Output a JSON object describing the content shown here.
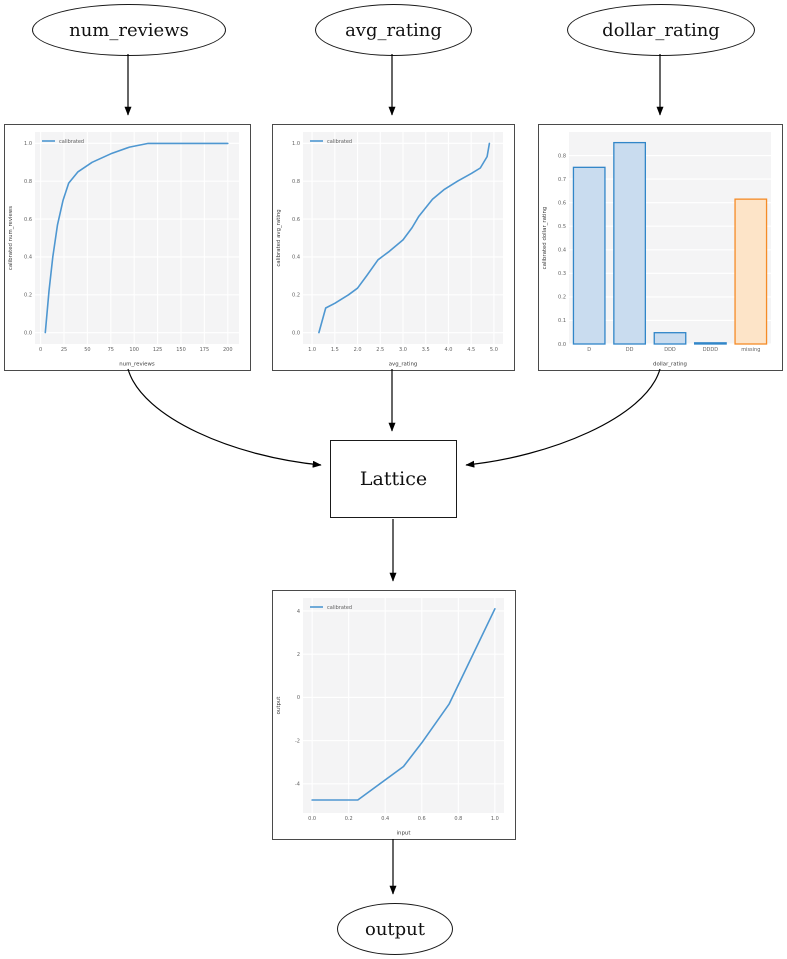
{
  "nodes": {
    "num_reviews": "num_reviews",
    "avg_rating": "avg_rating",
    "dollar_rating": "dollar_rating",
    "lattice": "Lattice",
    "output": "output"
  },
  "colors": {
    "line_blue": "#4e97d1",
    "bar_blue_fill": "#c9dcef",
    "bar_blue_edge": "#3186c8",
    "bar_orange_fill": "#fde4c8",
    "bar_orange_edge": "#f58b27",
    "axes_bg": "#f4f4f5",
    "grid": "#ffffff",
    "tick_text": "#606060",
    "label_text": "#3a3a3a",
    "edge_black": "#000000"
  },
  "chart_data": [
    {
      "id": "num_reviews_calibration",
      "type": "line",
      "legend": "calibrated",
      "xlabel": "num_reviews",
      "ylabel": "calibrated num_reviews",
      "xlim": [
        -6,
        212
      ],
      "ylim": [
        -0.06,
        1.06
      ],
      "xticks": [
        0,
        25,
        50,
        75,
        100,
        125,
        150,
        175,
        200
      ],
      "xtick_labels": [
        "0",
        "25",
        "50",
        "75",
        "100",
        "125",
        "150",
        "175",
        "200"
      ],
      "yticks": [
        0.0,
        0.2,
        0.4,
        0.6,
        0.8,
        1.0
      ],
      "ytick_labels": [
        "0.0",
        "0.2",
        "0.4",
        "0.6",
        "0.8",
        "1.0"
      ],
      "points": [
        [
          5,
          0.0
        ],
        [
          9,
          0.22
        ],
        [
          13,
          0.4
        ],
        [
          18,
          0.57
        ],
        [
          24,
          0.7
        ],
        [
          30,
          0.79
        ],
        [
          40,
          0.85
        ],
        [
          55,
          0.9
        ],
        [
          75,
          0.945
        ],
        [
          95,
          0.98
        ],
        [
          115,
          1.0
        ],
        [
          200,
          1.0
        ]
      ]
    },
    {
      "id": "avg_rating_calibration",
      "type": "line",
      "legend": "calibrated",
      "xlabel": "avg_rating",
      "ylabel": "calibrated avg_rating",
      "xlim": [
        0.8,
        5.2
      ],
      "ylim": [
        -0.06,
        1.06
      ],
      "xticks": [
        1.0,
        1.5,
        2.0,
        2.5,
        3.0,
        3.5,
        4.0,
        4.5,
        5.0
      ],
      "xtick_labels": [
        "1.0",
        "1.5",
        "2.0",
        "2.5",
        "3.0",
        "3.5",
        "4.0",
        "4.5",
        "5.0"
      ],
      "yticks": [
        0.0,
        0.2,
        0.4,
        0.6,
        0.8,
        1.0
      ],
      "ytick_labels": [
        "0.0",
        "0.2",
        "0.4",
        "0.6",
        "0.8",
        "1.0"
      ],
      "points": [
        [
          1.15,
          0.0
        ],
        [
          1.3,
          0.13
        ],
        [
          1.5,
          0.155
        ],
        [
          1.8,
          0.2
        ],
        [
          2.0,
          0.235
        ],
        [
          2.2,
          0.3
        ],
        [
          2.45,
          0.385
        ],
        [
          2.7,
          0.43
        ],
        [
          3.0,
          0.49
        ],
        [
          3.2,
          0.555
        ],
        [
          3.35,
          0.615
        ],
        [
          3.5,
          0.66
        ],
        [
          3.65,
          0.705
        ],
        [
          3.9,
          0.755
        ],
        [
          4.2,
          0.8
        ],
        [
          4.5,
          0.84
        ],
        [
          4.7,
          0.87
        ],
        [
          4.85,
          0.93
        ],
        [
          4.9,
          1.0
        ]
      ]
    },
    {
      "id": "dollar_rating_calibration",
      "type": "bar",
      "legend": null,
      "xlabel": "dollar_rating",
      "ylabel": "calibrated dollar_rating",
      "ylim": [
        0,
        0.9
      ],
      "categories": [
        "D",
        "DD",
        "DDD",
        "DDDD",
        "missing"
      ],
      "values": [
        0.75,
        0.855,
        0.048,
        0.005,
        0.615
      ],
      "bar_colors": [
        "bar_blue",
        "bar_blue",
        "bar_blue",
        "bar_blue",
        "bar_orange"
      ],
      "yticks": [
        0.0,
        0.1,
        0.2,
        0.3,
        0.4,
        0.5,
        0.6,
        0.7,
        0.8
      ],
      "ytick_labels": [
        "0.0",
        "0.1",
        "0.2",
        "0.3",
        "0.4",
        "0.5",
        "0.6",
        "0.7",
        "0.8"
      ]
    },
    {
      "id": "output_calibration",
      "type": "line",
      "legend": "calibrated",
      "xlabel": "input",
      "ylabel": "output",
      "xlim": [
        -0.05,
        1.05
      ],
      "ylim": [
        -5.35,
        4.6
      ],
      "xticks": [
        0.0,
        0.2,
        0.4,
        0.6,
        0.8,
        1.0
      ],
      "xtick_labels": [
        "0.0",
        "0.2",
        "0.4",
        "0.6",
        "0.8",
        "1.0"
      ],
      "yticks": [
        -4,
        -2,
        0,
        2,
        4
      ],
      "ytick_labels": [
        "-4",
        "-2",
        "0",
        "2",
        "4"
      ],
      "points": [
        [
          0.0,
          -4.75
        ],
        [
          0.25,
          -4.75
        ],
        [
          0.5,
          -3.2
        ],
        [
          0.6,
          -2.1
        ],
        [
          0.75,
          -0.3
        ],
        [
          1.0,
          4.1
        ]
      ]
    }
  ]
}
